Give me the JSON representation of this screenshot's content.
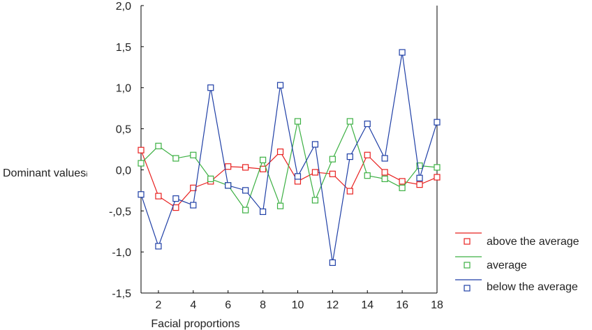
{
  "chart_data": {
    "type": "line",
    "xlabel": "Facial proportions",
    "ylabel": "Dominant values",
    "ylabel_suffix": "i",
    "x": [
      1,
      2,
      3,
      4,
      5,
      6,
      7,
      8,
      9,
      10,
      11,
      12,
      13,
      14,
      15,
      16,
      17,
      18
    ],
    "xticks": [
      {
        "value": 2,
        "label": "2"
      },
      {
        "value": 4,
        "label": "4"
      },
      {
        "value": 6,
        "label": "6"
      },
      {
        "value": 8,
        "label": "8"
      },
      {
        "value": 10,
        "label": "10"
      },
      {
        "value": 12,
        "label": "12"
      },
      {
        "value": 14,
        "label": "14"
      },
      {
        "value": 16,
        "label": "16"
      },
      {
        "value": 18,
        "label": "18"
      }
    ],
    "yticks": [
      {
        "value": 2.0,
        "label": "2,0"
      },
      {
        "value": 1.5,
        "label": "1,5"
      },
      {
        "value": 1.0,
        "label": "1,0"
      },
      {
        "value": 0.5,
        "label": "0,5"
      },
      {
        "value": 0.0,
        "label": "0,0"
      },
      {
        "value": -0.5,
        "label": "-,0,5"
      },
      {
        "value": -1.0,
        "label": "-1,0"
      },
      {
        "value": -1.5,
        "label": "-1,5"
      }
    ],
    "xlim": [
      1,
      18
    ],
    "ylim": [
      -1.5,
      2.0
    ],
    "grid": false,
    "legend_position": "bottom-right",
    "series": [
      {
        "name": "above the average",
        "color": "#e8201f",
        "values": [
          0.24,
          -0.32,
          -0.46,
          -0.22,
          -0.14,
          0.04,
          0.03,
          0.01,
          0.22,
          -0.14,
          -0.03,
          -0.05,
          -0.26,
          0.18,
          -0.03,
          -0.14,
          -0.18,
          -0.09
        ]
      },
      {
        "name": "average",
        "color": "#3cb043",
        "values": [
          0.08,
          0.29,
          0.14,
          0.18,
          -0.11,
          -0.19,
          -0.49,
          0.12,
          -0.44,
          0.59,
          -0.37,
          0.13,
          0.59,
          -0.07,
          -0.11,
          -0.22,
          0.05,
          0.03
        ]
      },
      {
        "name": "below the average",
        "color": "#1f3fa6",
        "values": [
          -0.3,
          -0.93,
          -0.35,
          -0.43,
          1.0,
          -0.19,
          -0.25,
          -0.51,
          1.03,
          -0.08,
          0.31,
          -1.13,
          0.16,
          0.56,
          0.14,
          1.43,
          -0.1,
          0.58
        ]
      }
    ]
  }
}
